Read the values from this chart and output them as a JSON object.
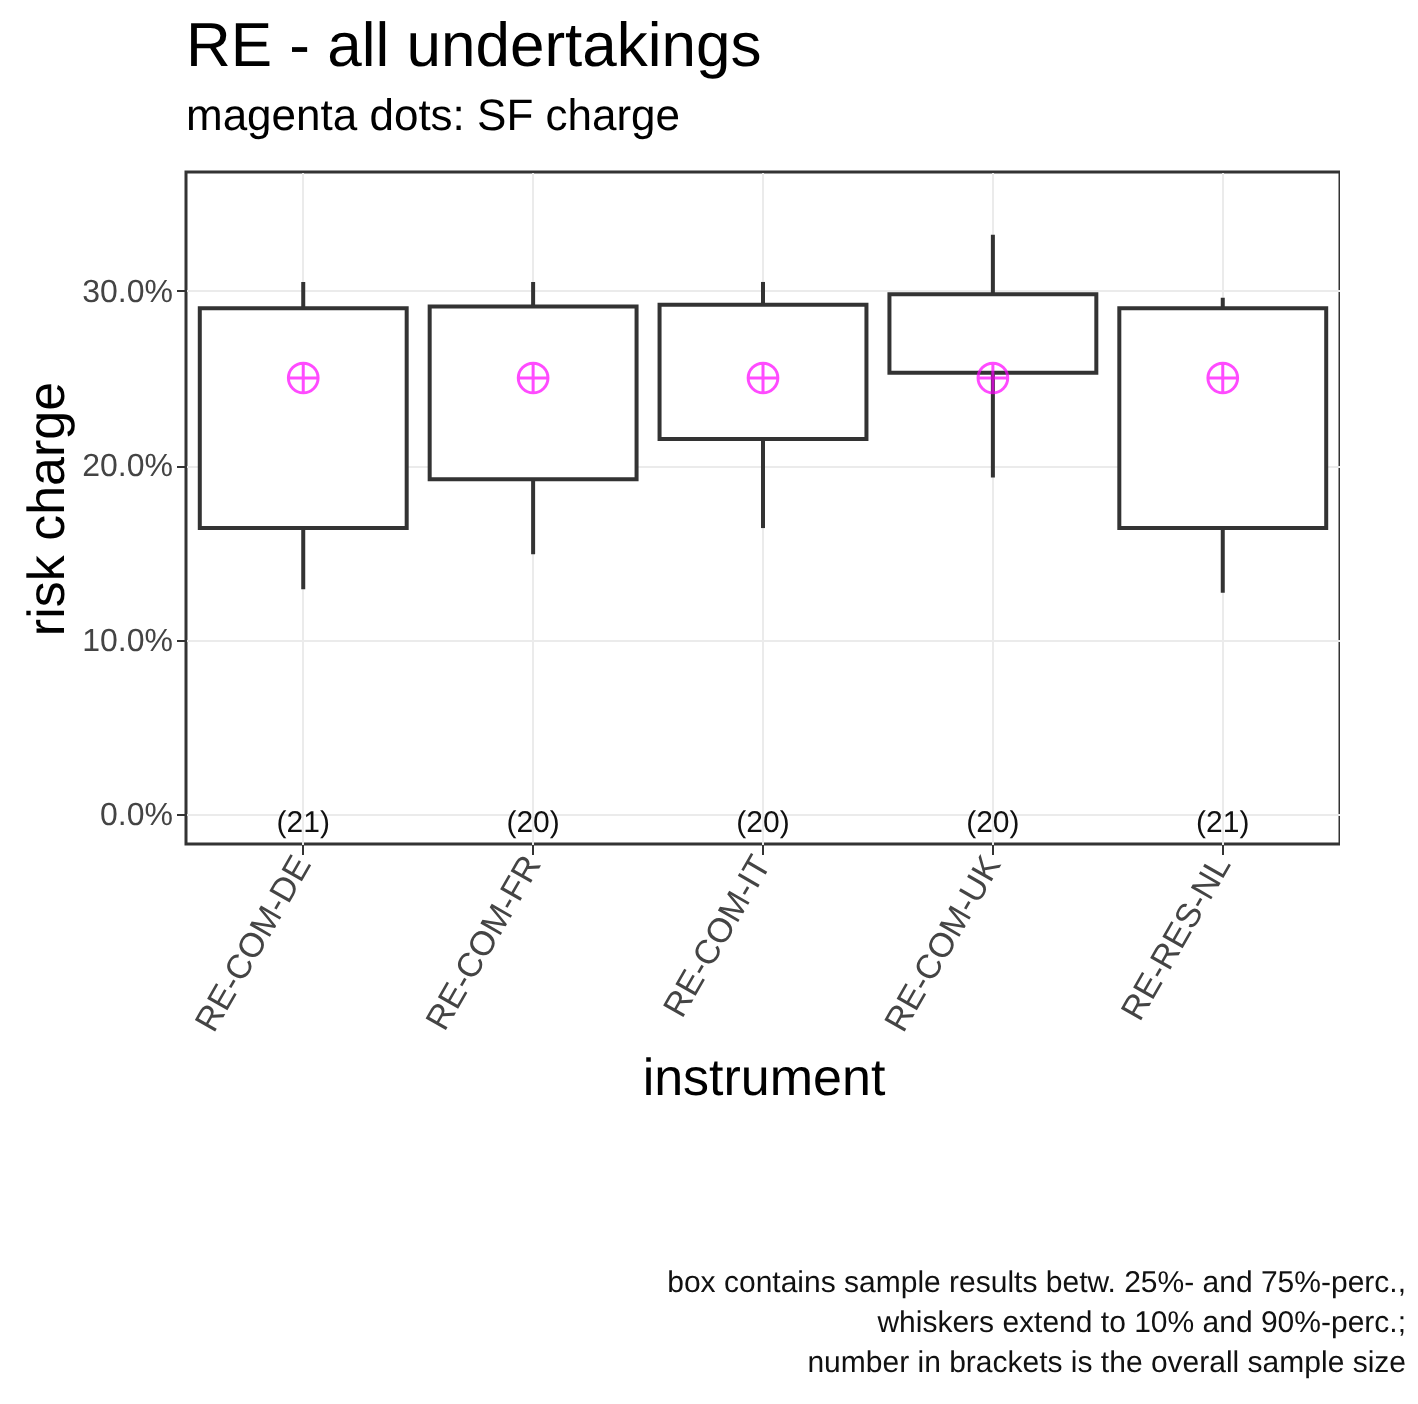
{
  "chart_data": {
    "type": "box",
    "title": "RE - all undertakings",
    "subtitle": "magenta dots: SF charge",
    "xlabel": "instrument",
    "ylabel": "risk charge",
    "categories": [
      "RE-COM-DE",
      "RE-COM-FR",
      "RE-COM-IT",
      "RE-COM-UK",
      "RE-RES-NL"
    ],
    "boxes": [
      {
        "low": 12.9,
        "q1": 16.4,
        "q3": 29.0,
        "high": 30.5
      },
      {
        "low": 14.9,
        "q1": 19.2,
        "q3": 29.1,
        "high": 30.5
      },
      {
        "low": 16.4,
        "q1": 21.5,
        "q3": 29.2,
        "high": 30.5
      },
      {
        "low": 19.3,
        "q1": 25.3,
        "q3": 29.8,
        "high": 33.2
      },
      {
        "low": 12.7,
        "q1": 16.4,
        "q3": 29.0,
        "high": 29.6
      }
    ],
    "series": [
      {
        "type": "scatter",
        "color": "#ff00ff",
        "marker": "cross",
        "x": [
          "RE-COM-DE",
          "RE-COM-FR",
          "RE-COM-IT",
          "RE-COM-UK",
          "RE-RES-NL"
        ],
        "values": [
          25,
          25,
          25,
          25,
          25
        ]
      }
    ],
    "ylim": [
      -1.7,
      36.8
    ],
    "yticks": [
      {
        "value": 0,
        "label": "0.0%"
      },
      {
        "value": 10,
        "label": "10.0%"
      },
      {
        "value": 20,
        "label": "20.0%"
      },
      {
        "value": 30,
        "label": "30.0%"
      }
    ],
    "grid": true,
    "annotations": [
      "(21)",
      "(20)",
      "(20)",
      "(20)",
      "(21)",
      "box contains sample results betw. 25%- and 75%-perc.,",
      "whiskers extend to 10% and 90%-perc.;",
      "number in brackets is the overall sample size"
    ]
  }
}
